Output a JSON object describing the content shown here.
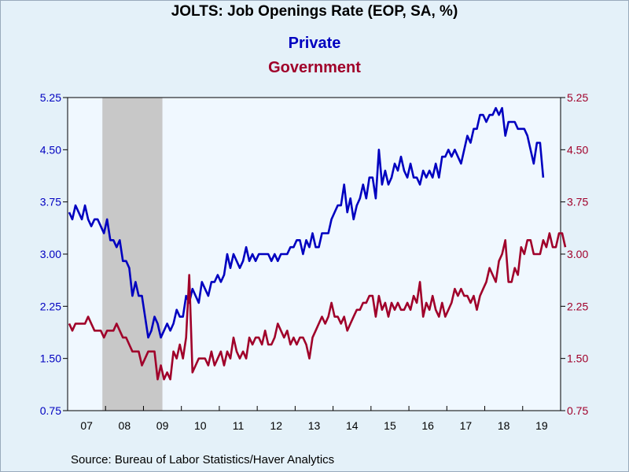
{
  "chart_data": {
    "type": "line",
    "title": "JOLTS: Job Openings Rate (EOP, SA, %)",
    "source": "Source:  Bureau of Labor Statistics/Haver Analytics",
    "x_labels": [
      "07",
      "08",
      "09",
      "10",
      "11",
      "12",
      "13",
      "14",
      "15",
      "16",
      "17",
      "18",
      "19"
    ],
    "x_start_year": 2007,
    "y_ticks": [
      "0.75",
      "1.50",
      "2.25",
      "3.00",
      "3.75",
      "4.50",
      "5.25"
    ],
    "ylim": [
      0.75,
      5.25
    ],
    "recession": {
      "start": "2007-12",
      "end": "2009-06"
    },
    "colors": {
      "private": "#0000c0",
      "government": "#a0002a",
      "recession": "#c8c8c8",
      "plot_bg": "#f0f8ff"
    },
    "series": [
      {
        "name": "Private",
        "axis": "left",
        "start": "2007-01",
        "values": [
          3.6,
          3.5,
          3.7,
          3.6,
          3.5,
          3.7,
          3.5,
          3.4,
          3.5,
          3.5,
          3.4,
          3.3,
          3.5,
          3.2,
          3.2,
          3.1,
          3.2,
          2.9,
          2.9,
          2.8,
          2.4,
          2.6,
          2.4,
          2.4,
          2.1,
          1.8,
          1.9,
          2.1,
          2.0,
          1.8,
          1.9,
          2.0,
          1.9,
          2.0,
          2.2,
          2.1,
          2.1,
          2.4,
          2.3,
          2.5,
          2.4,
          2.3,
          2.6,
          2.5,
          2.4,
          2.6,
          2.6,
          2.7,
          2.6,
          2.7,
          3.0,
          2.8,
          3.0,
          2.9,
          2.8,
          2.9,
          3.1,
          2.9,
          3.0,
          2.9,
          3.0,
          3.0,
          3.0,
          3.0,
          2.9,
          3.0,
          2.9,
          3.0,
          3.0,
          3.0,
          3.1,
          3.1,
          3.2,
          3.2,
          3.0,
          3.2,
          3.1,
          3.3,
          3.1,
          3.1,
          3.3,
          3.3,
          3.3,
          3.5,
          3.6,
          3.7,
          3.7,
          4.0,
          3.6,
          3.8,
          3.5,
          3.7,
          3.8,
          4.0,
          3.8,
          4.1,
          4.1,
          3.8,
          4.5,
          4.0,
          4.2,
          4.0,
          4.1,
          4.3,
          4.2,
          4.4,
          4.2,
          4.1,
          4.3,
          4.1,
          4.1,
          4.0,
          4.2,
          4.1,
          4.2,
          4.1,
          4.3,
          4.1,
          4.4,
          4.4,
          4.5,
          4.4,
          4.5,
          4.4,
          4.3,
          4.5,
          4.7,
          4.6,
          4.8,
          4.8,
          5.0,
          5.0,
          4.9,
          5.0,
          5.0,
          5.1,
          5.0,
          5.1,
          4.7,
          4.9,
          4.9,
          4.9,
          4.8,
          4.8,
          4.8,
          4.7,
          4.5,
          4.3,
          4.6,
          4.6,
          4.1
        ]
      },
      {
        "name": "Government",
        "axis": "right",
        "start": "2007-01",
        "values": [
          2.0,
          1.9,
          2.0,
          2.0,
          2.0,
          2.0,
          2.1,
          2.0,
          1.9,
          1.9,
          1.9,
          1.8,
          1.9,
          1.9,
          1.9,
          2.0,
          1.9,
          1.8,
          1.8,
          1.7,
          1.6,
          1.6,
          1.6,
          1.4,
          1.5,
          1.6,
          1.6,
          1.6,
          1.2,
          1.4,
          1.2,
          1.3,
          1.2,
          1.6,
          1.5,
          1.7,
          1.5,
          1.8,
          2.7,
          1.3,
          1.4,
          1.5,
          1.5,
          1.5,
          1.4,
          1.6,
          1.4,
          1.5,
          1.6,
          1.4,
          1.6,
          1.5,
          1.8,
          1.6,
          1.5,
          1.6,
          1.5,
          1.8,
          1.7,
          1.8,
          1.8,
          1.7,
          1.9,
          1.7,
          1.7,
          1.8,
          2.0,
          1.9,
          1.8,
          1.9,
          1.7,
          1.8,
          1.7,
          1.8,
          1.8,
          1.7,
          1.5,
          1.8,
          1.9,
          2.0,
          2.1,
          2.0,
          2.1,
          2.3,
          2.1,
          2.1,
          2.0,
          2.1,
          1.9,
          2.0,
          2.1,
          2.2,
          2.2,
          2.3,
          2.3,
          2.4,
          2.4,
          2.1,
          2.4,
          2.2,
          2.3,
          2.1,
          2.3,
          2.2,
          2.3,
          2.2,
          2.2,
          2.3,
          2.2,
          2.4,
          2.3,
          2.6,
          2.1,
          2.3,
          2.2,
          2.4,
          2.2,
          2.1,
          2.3,
          2.1,
          2.2,
          2.3,
          2.5,
          2.4,
          2.5,
          2.4,
          2.4,
          2.3,
          2.4,
          2.2,
          2.4,
          2.5,
          2.6,
          2.8,
          2.7,
          2.6,
          2.9,
          3.0,
          3.2,
          2.6,
          2.6,
          2.8,
          2.7,
          3.1,
          3.0,
          3.2,
          3.2,
          3.0,
          3.0,
          3.0,
          3.2,
          3.1,
          3.3,
          3.1,
          3.1,
          3.3,
          3.3,
          3.1
        ]
      }
    ]
  }
}
